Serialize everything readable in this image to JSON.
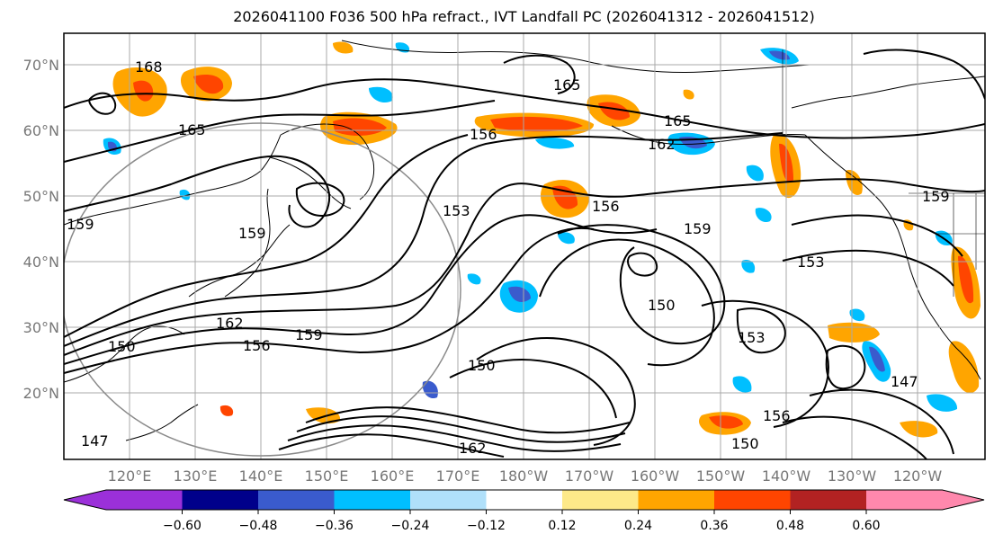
{
  "title": "2026041100 F036 500 hPa refract., IVT Landfall PC (2026041312 - 2026041512)",
  "map": {
    "lat_labels": [
      "70°N",
      "60°N",
      "50°N",
      "40°N",
      "30°N",
      "20°N"
    ],
    "lon_labels": [
      "120°E",
      "130°E",
      "140°E",
      "150°E",
      "160°E",
      "170°E",
      "180°W",
      "170°W",
      "160°W",
      "150°W",
      "140°W",
      "130°W",
      "120°W"
    ],
    "contour_labels": [
      "168",
      "165",
      "165",
      "165",
      "162",
      "159",
      "159",
      "156",
      "156",
      "156",
      "153",
      "153",
      "153",
      "150",
      "150",
      "150",
      "150",
      "147",
      "147",
      "162",
      "162",
      "159",
      "156",
      "159",
      "159"
    ],
    "colors": {
      "land_line": "#000000",
      "grid": "#a9a9a9",
      "circle": "#8a8a8a"
    }
  },
  "colorbar": {
    "ticks": [
      "−0.60",
      "−0.48",
      "−0.36",
      "−0.24",
      "−0.12",
      "0.12",
      "0.24",
      "0.36",
      "0.48",
      "0.60"
    ],
    "colors": [
      "#9b30d9",
      "#00008b",
      "#3a5bcd",
      "#00bfff",
      "#b0e0fa",
      "#ffffff",
      "#fde989",
      "#ffa500",
      "#ff4500",
      "#b22222",
      "#ff88ad"
    ]
  }
}
